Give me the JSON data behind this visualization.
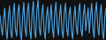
{
  "background_color": "#111111",
  "line_color": "#4da6e8",
  "line_width": 0.8,
  "figsize": [
    1.2,
    0.45
  ],
  "dpi": 100,
  "values": [
    0.62,
    0.38,
    0.2,
    0.55,
    0.78,
    0.3,
    0.12,
    0.58,
    0.82,
    0.28,
    0.15,
    0.65,
    0.88,
    0.32,
    0.18,
    0.7,
    0.85,
    0.25,
    0.1,
    0.6,
    0.9,
    0.35,
    0.18,
    0.72,
    0.88,
    0.3,
    0.12,
    0.68,
    0.92,
    0.28,
    0.15,
    0.75,
    0.95,
    0.35,
    0.2,
    0.65,
    0.85,
    0.3,
    0.12,
    0.6,
    0.8,
    0.25,
    0.55,
    0.85,
    0.35,
    0.15,
    0.7,
    0.9,
    0.4,
    0.2,
    0.62,
    0.85,
    0.3,
    0.15,
    0.68,
    0.88,
    0.35,
    0.18,
    0.65,
    0.8,
    0.28,
    0.12,
    0.58,
    0.82,
    0.38,
    0.22,
    0.7,
    0.88,
    0.32,
    0.18,
    0.65,
    0.85,
    0.3,
    0.55,
    0.78,
    0.25,
    0.62,
    0.88,
    0.35,
    0.15,
    0.7,
    0.9,
    0.4,
    0.2,
    0.65,
    0.85,
    0.28,
    0.12,
    0.58,
    0.78
  ],
  "fill_alpha": 0.0
}
